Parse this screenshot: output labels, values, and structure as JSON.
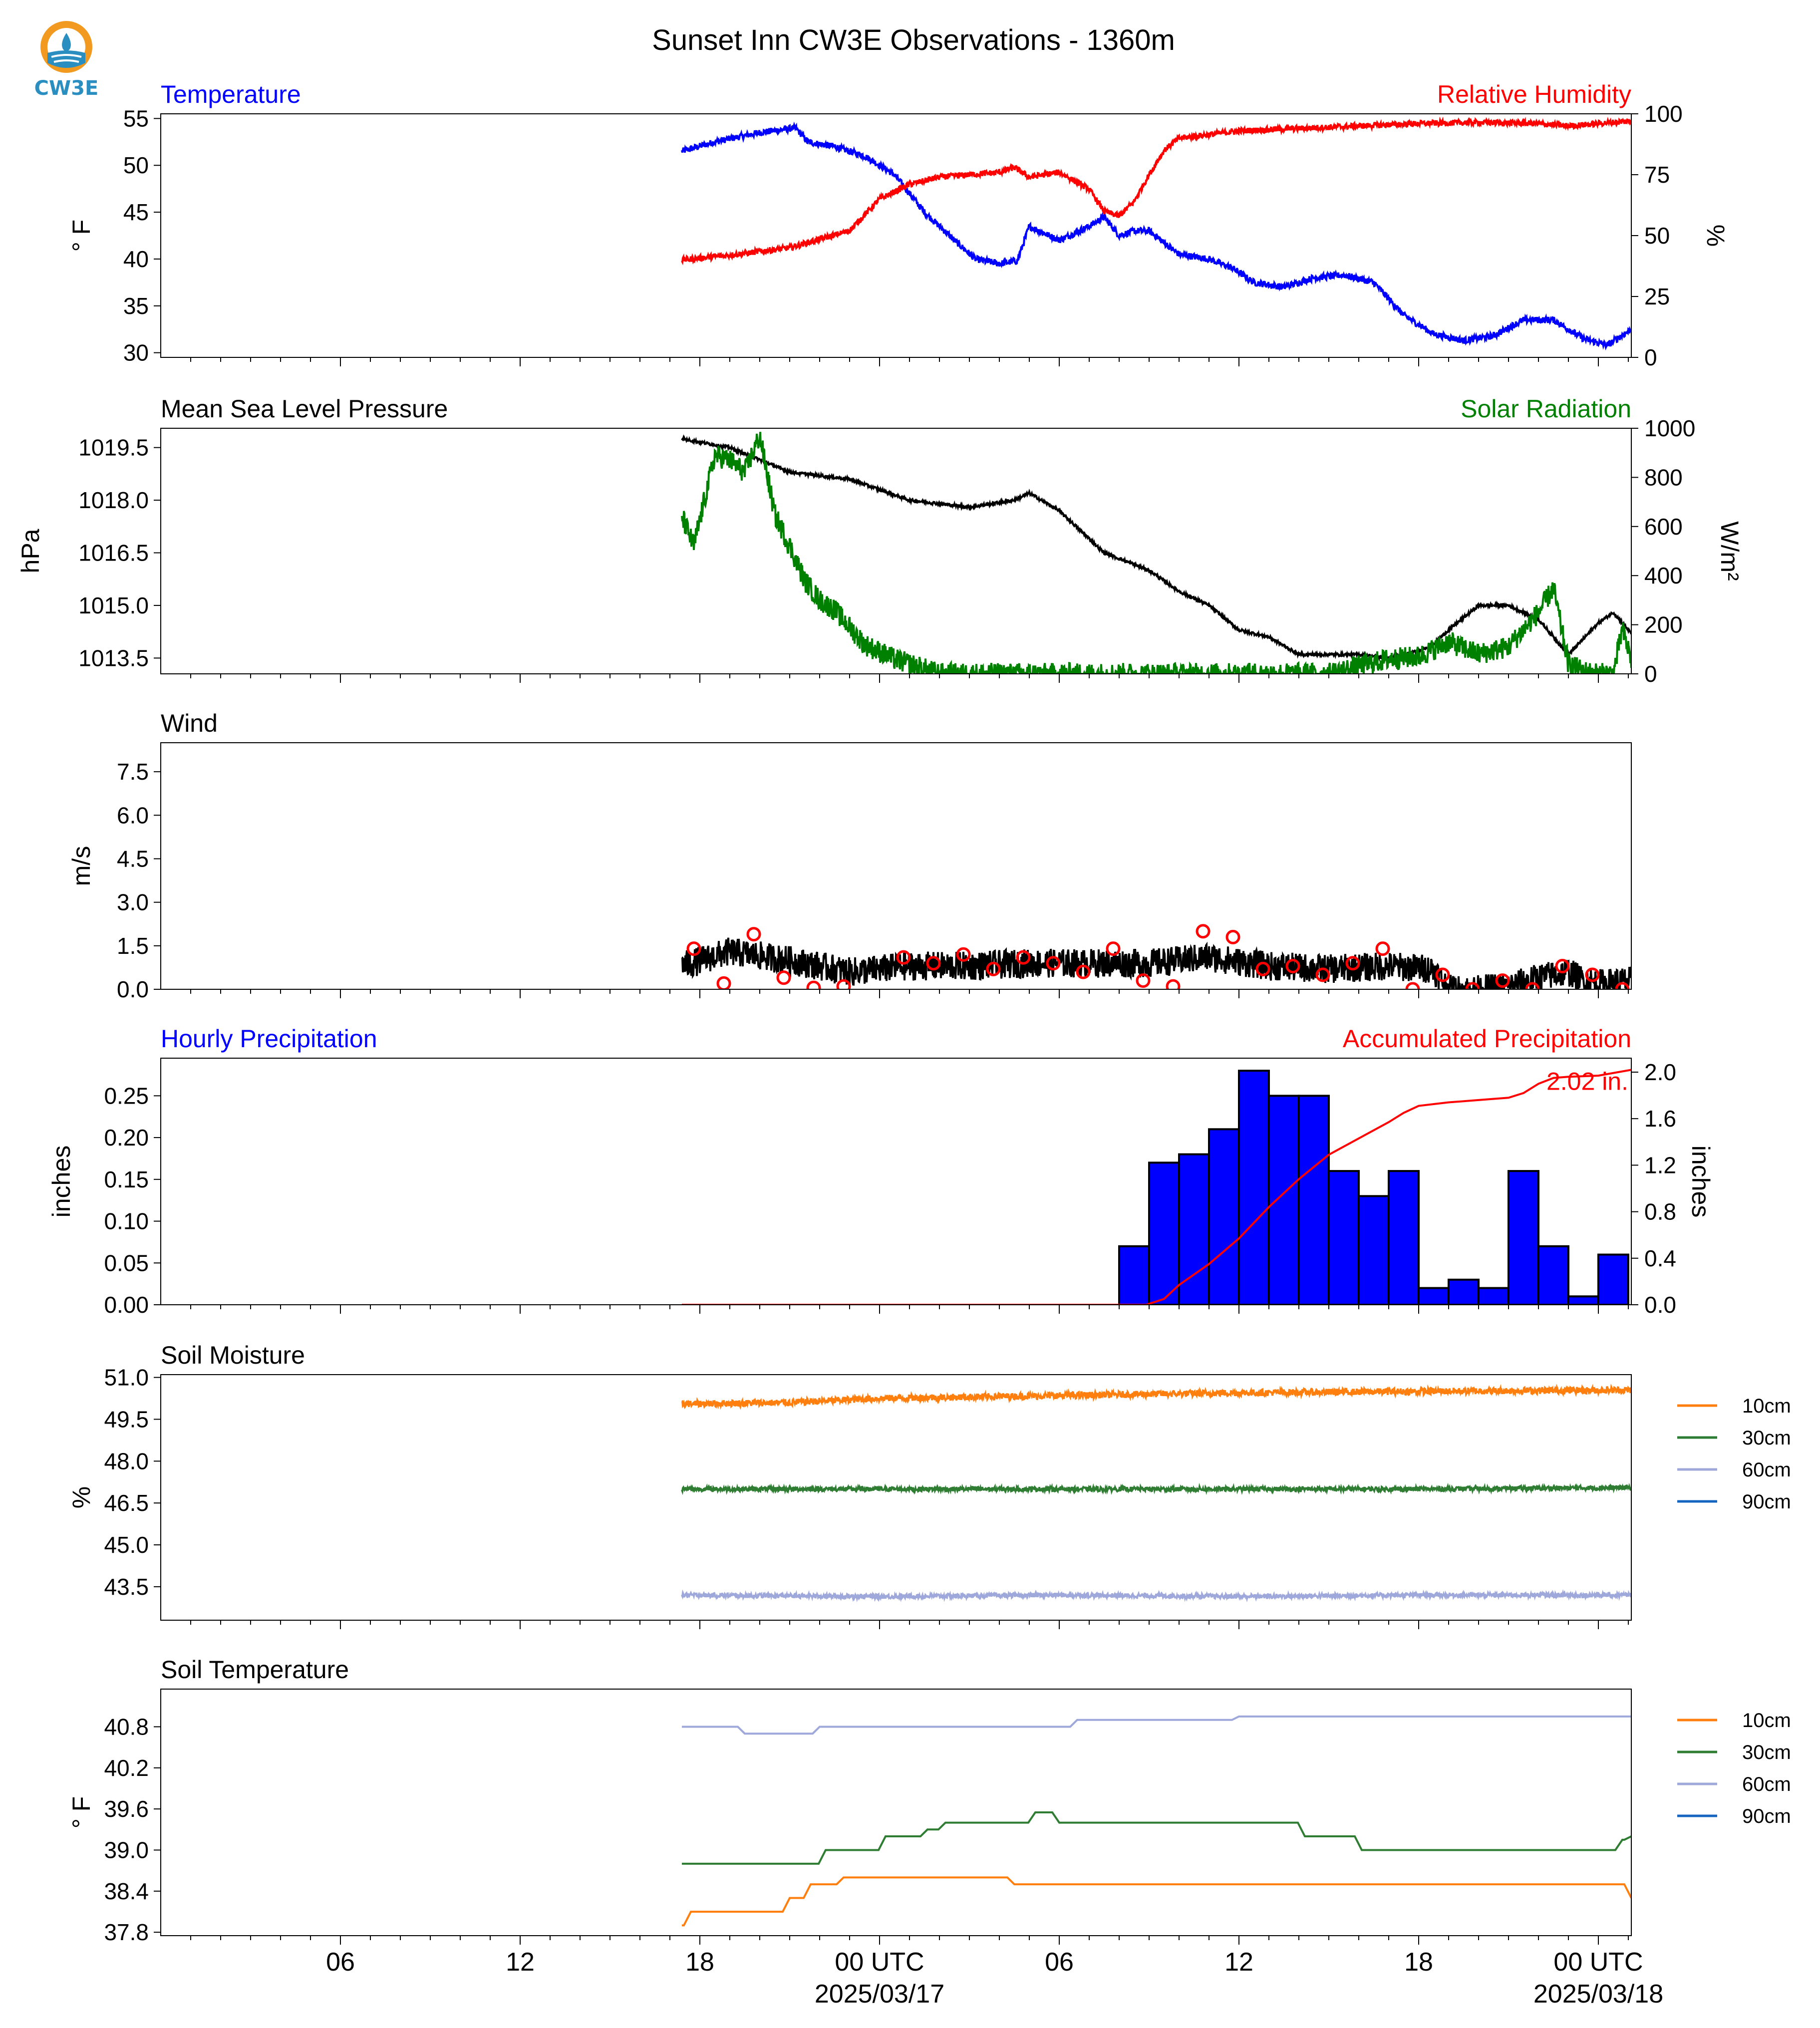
{
  "title": "Sunset Inn CW3E Observations - 1360m",
  "logo": {
    "text": "CW3E",
    "colors": {
      "ring": "#f29a1f",
      "water": "#2a8fc0"
    }
  },
  "x_axis": {
    "range_hours": [
      -24,
      25.1
    ],
    "ticks": [
      {
        "h": -18,
        "label": "06"
      },
      {
        "h": -12,
        "label": "12"
      },
      {
        "h": -6,
        "label": "18"
      },
      {
        "h": 0,
        "label": "00 UTC",
        "sublabel": "2025/03/17"
      },
      {
        "h": 6,
        "label": "06"
      },
      {
        "h": 12,
        "label": "12"
      },
      {
        "h": 18,
        "label": "18"
      },
      {
        "h": 24,
        "label": "00 UTC",
        "sublabel": "2025/03/18"
      }
    ]
  },
  "chart_data": [
    {
      "id": "temp_rh",
      "type": "line",
      "title_left": "Temperature",
      "title_left_color": "#0000ff",
      "title_right": "Relative Humidity",
      "title_right_color": "#ff0000",
      "ylabel_left": "° F",
      "ylabel_right": "%",
      "ylim_left": [
        29.5,
        55.5
      ],
      "ylim_right": [
        0,
        100
      ],
      "yticks_left": [
        30,
        35,
        40,
        45,
        50,
        55
      ],
      "yticks_right": [
        0,
        25,
        50,
        75,
        100
      ],
      "series": [
        {
          "axis": "left",
          "color": "#0000ff",
          "noise": 0.35,
          "x": [
            -6.6,
            -5.5,
            -4,
            -2.8,
            -2.4,
            -1.5,
            -0.5,
            0.5,
            1.5,
            2.5,
            3.2,
            4,
            4.6,
            5,
            6,
            7,
            7.5,
            8,
            8.5,
            9,
            10,
            11,
            11.8,
            12.5,
            13.5,
            14.5,
            15.5,
            16.5,
            17.5,
            18.5,
            19.5,
            20.5,
            21.5,
            22.5,
            23.5,
            24.3,
            25.1
          ],
          "y": [
            51.5,
            52.5,
            53.5,
            54,
            52.5,
            52,
            51,
            49,
            45,
            42,
            40,
            39.5,
            39.8,
            43.5,
            42,
            43.5,
            44.5,
            42.5,
            43,
            43,
            40.5,
            40,
            39,
            37.5,
            37,
            38,
            38.3,
            37.5,
            34,
            32,
            31.3,
            31.8,
            33.5,
            33.5,
            31.5,
            30.8,
            32.5
          ]
        },
        {
          "axis": "right",
          "color": "#ff0000",
          "noise": 1.2,
          "x": [
            -6.6,
            -5,
            -3,
            -1,
            0,
            1,
            2,
            3,
            4,
            4.5,
            5,
            6,
            7,
            7.5,
            8,
            8.5,
            9,
            9.5,
            10,
            12,
            14,
            16,
            18,
            20,
            22,
            23,
            24.5,
            25.1
          ],
          "y": [
            40,
            42,
            45,
            52,
            65,
            71,
            74,
            75,
            76,
            78,
            74,
            76,
            69,
            60,
            58,
            64,
            75,
            85,
            90,
            93,
            94,
            95,
            96,
            96.5,
            96,
            95,
            96.5,
            97
          ]
        }
      ]
    },
    {
      "id": "pressure_solar",
      "type": "line",
      "title_left": "Mean Sea Level Pressure",
      "title_left_color": "#000000",
      "title_right": "Solar Radiation",
      "title_right_color": "#008000",
      "ylabel_left": "hPa",
      "ylabel_right": "W/m²",
      "ylim_left": [
        1013.05,
        1020.05
      ],
      "ylim_right": [
        0,
        1000
      ],
      "yticks_left": [
        1013.5,
        1015.0,
        1016.5,
        1018.0,
        1019.5
      ],
      "yticks_right": [
        0,
        200,
        400,
        600,
        800,
        1000
      ],
      "right_axis_max_tick": 1000,
      "series": [
        {
          "axis": "left",
          "color": "#000000",
          "noise": 0.04,
          "x": [
            -6.6,
            -5,
            -4,
            -3,
            -1,
            1,
            2,
            3,
            4.5,
            5,
            6,
            7.5,
            9,
            10,
            11,
            12,
            13,
            14,
            15,
            16,
            17,
            18,
            18.5,
            19,
            20,
            21,
            22,
            22.5,
            23,
            24,
            24.5,
            25.1
          ],
          "y": [
            1019.75,
            1019.5,
            1019.15,
            1018.8,
            1018.6,
            1018.0,
            1017.9,
            1017.8,
            1018.0,
            1018.2,
            1017.7,
            1016.5,
            1016.0,
            1015.4,
            1015.0,
            1014.3,
            1014.1,
            1013.6,
            1013.6,
            1013.6,
            1013.5,
            1013.7,
            1013.9,
            1014.3,
            1015.0,
            1015.0,
            1014.6,
            1014.1,
            1013.6,
            1014.5,
            1014.8,
            1014.2
          ]
        },
        {
          "axis": "right",
          "color": "#008000",
          "noise": 45,
          "x": [
            -6.6,
            -6.2,
            -5.5,
            -5,
            -4.5,
            -4,
            -3.5,
            -3,
            -2.5,
            -2,
            -1.5,
            -0.5,
            0.5,
            1.5,
            2,
            3,
            5,
            10,
            12,
            13,
            14,
            15,
            16,
            17,
            18,
            19,
            20,
            21,
            22,
            22.5,
            23,
            23.5,
            24,
            24.5,
            24.8,
            25.1
          ],
          "y": [
            640,
            520,
            890,
            870,
            820,
            970,
            650,
            520,
            380,
            300,
            260,
            120,
            60,
            20,
            0,
            0,
            0,
            0,
            0,
            0,
            0,
            0,
            30,
            60,
            70,
            130,
            80,
            110,
            250,
            350,
            40,
            10,
            0,
            0,
            180,
            60
          ]
        }
      ]
    },
    {
      "id": "wind",
      "type": "line",
      "title_left": "Wind",
      "title_left_color": "#000000",
      "ylabel_left": "m/s",
      "ylim_left": [
        0,
        8.5
      ],
      "yticks_left": [
        0.0,
        1.5,
        3.0,
        4.5,
        6.0,
        7.5
      ],
      "series": [
        {
          "axis": "left",
          "color": "#000000",
          "noise": 0.5,
          "x": [
            -6.6,
            -5,
            -3,
            -1,
            1,
            3,
            5,
            7,
            9,
            11,
            13,
            15,
            17,
            18.5,
            19,
            19.5,
            20,
            21,
            22,
            23,
            23.5,
            24,
            25.1
          ],
          "y": [
            0.8,
            1.3,
            1.0,
            0.6,
            0.8,
            0.8,
            0.9,
            0.9,
            0.9,
            1.1,
            0.8,
            0.7,
            0.8,
            0.7,
            0.0,
            0.0,
            0.0,
            0.1,
            0.4,
            0.6,
            0.3,
            0.2,
            0.3
          ]
        }
      ],
      "markers": {
        "color": "#ff0000",
        "x": [
          -6.2,
          -5.2,
          -4.2,
          -3.2,
          -2.2,
          -1.2,
          0.8,
          1.8,
          2.8,
          3.8,
          4.8,
          5.8,
          6.8,
          7.8,
          8.8,
          9.8,
          10.8,
          11.8,
          12.8,
          13.8,
          14.8,
          15.8,
          16.8,
          17.8,
          18.8,
          19.8,
          20.8,
          21.8,
          22.8,
          23.8,
          24.8
        ],
        "y": [
          1.4,
          0.2,
          1.9,
          0.4,
          0.05,
          0.1,
          1.1,
          0.9,
          1.2,
          0.7,
          1.1,
          0.9,
          0.6,
          1.4,
          0.3,
          0.1,
          2.0,
          1.8,
          0.7,
          0.8,
          0.5,
          0.9,
          1.4,
          0.0,
          0.5,
          0.0,
          0.3,
          0.0,
          0.8,
          0.5,
          0.0
        ]
      }
    },
    {
      "id": "precip",
      "type": "bar",
      "title_left": "Hourly Precipitation",
      "title_left_color": "#0000ff",
      "title_right": "Accumulated Precipitation",
      "title_right_color": "#ff0000",
      "ylabel_left": "inches",
      "ylabel_right": "inches",
      "ylim_left": [
        0,
        0.295
      ],
      "ylim_right": [
        0,
        2.12
      ],
      "yticks_left": [
        0.0,
        0.05,
        0.1,
        0.15,
        0.2,
        0.25
      ],
      "yticks_right": [
        0.0,
        0.4,
        0.8,
        1.2,
        1.6,
        2.0
      ],
      "bar_color": "#0000ff",
      "bars": {
        "x": [
          8.5,
          9.5,
          10.5,
          11.5,
          12.5,
          13.5,
          14.5,
          15.5,
          16.5,
          17.5,
          18.5,
          19.5,
          20.5,
          21.5,
          22.5,
          23.5,
          24.5
        ],
        "values": [
          0.07,
          0.17,
          0.18,
          0.21,
          0.28,
          0.25,
          0.25,
          0.16,
          0.13,
          0.16,
          0.02,
          0.03,
          0.02,
          0.16,
          0.07,
          0.01,
          0.06
        ]
      },
      "accum_color": "#ff0000",
      "accum": {
        "x": [
          -6.6,
          8.9,
          9.5,
          10,
          11,
          12,
          13,
          14,
          15,
          16,
          17,
          17.5,
          18,
          19,
          20,
          21,
          21.5,
          22,
          22.5,
          23,
          24,
          25.1
        ],
        "y": [
          0,
          0,
          0.05,
          0.17,
          0.35,
          0.57,
          0.84,
          1.08,
          1.29,
          1.43,
          1.57,
          1.65,
          1.71,
          1.74,
          1.76,
          1.78,
          1.82,
          1.9,
          1.95,
          1.96,
          1.97,
          2.02
        ]
      },
      "accum_label": "2.02 in."
    },
    {
      "id": "soil_moisture",
      "type": "line",
      "title_left": "Soil Moisture",
      "title_left_color": "#000000",
      "ylabel_left": "%",
      "ylim_left": [
        42.3,
        51.1
      ],
      "yticks_left": [
        43.5,
        45.0,
        46.5,
        48.0,
        49.5,
        51.0
      ],
      "legend": [
        "10cm",
        "30cm",
        "60cm",
        "90cm"
      ],
      "legend_colors": [
        "#ff7f0e",
        "#2e7d32",
        "#9fa8da",
        "#1565c0"
      ],
      "series": [
        {
          "name": "10cm",
          "color": "#ff7f0e",
          "noise": 0.12,
          "x": [
            -6.6,
            -3,
            0,
            6,
            12,
            18,
            25.1
          ],
          "y": [
            50.05,
            50.1,
            50.25,
            50.35,
            50.45,
            50.5,
            50.55
          ]
        },
        {
          "name": "30cm",
          "color": "#2e7d32",
          "noise": 0.08,
          "x": [
            -6.6,
            0,
            6,
            12,
            18,
            25.1
          ],
          "y": [
            47.0,
            47.0,
            47.0,
            47.0,
            47.0,
            47.05
          ]
        },
        {
          "name": "60cm",
          "color": "#9fa8da",
          "noise": 0.08,
          "x": [
            -6.6,
            0,
            6,
            12,
            18,
            25.1
          ],
          "y": [
            43.2,
            43.15,
            43.2,
            43.15,
            43.2,
            43.2
          ]
        }
      ]
    },
    {
      "id": "soil_temperature",
      "type": "line",
      "title_left": "Soil Temperature",
      "title_left_color": "#000000",
      "ylabel_left": "° F",
      "ylim_left": [
        37.75,
        41.35
      ],
      "yticks_left": [
        37.8,
        38.4,
        39.0,
        39.6,
        40.2,
        40.8
      ],
      "legend": [
        "10cm",
        "30cm",
        "60cm",
        "90cm"
      ],
      "legend_colors": [
        "#ff7f0e",
        "#2e7d32",
        "#9fa8da",
        "#1565c0"
      ],
      "series": [
        {
          "name": "10cm",
          "color": "#ff7f0e",
          "step": true,
          "x": [
            -6.6,
            -6.3,
            -4.9,
            -3.0,
            -2.3,
            -1.2,
            4.5,
            24.8,
            25.1
          ],
          "y": [
            37.9,
            38.1,
            38.1,
            38.3,
            38.5,
            38.6,
            38.5,
            38.5,
            38.3
          ]
        },
        {
          "name": "30cm",
          "color": "#2e7d32",
          "step": true,
          "x": [
            -6.6,
            -1.8,
            0.2,
            1.6,
            2.2,
            5.2,
            6.0,
            6.5,
            14.2,
            16.1,
            24.5,
            24.8,
            25.1
          ],
          "y": [
            38.8,
            39.0,
            39.2,
            39.3,
            39.4,
            39.55,
            39.4,
            39.4,
            39.2,
            39.0,
            39.0,
            39.15,
            39.2
          ]
        },
        {
          "name": "60cm",
          "color": "#9fa8da",
          "step": true,
          "x": [
            -6.6,
            -4.5,
            -2.0,
            4.0,
            6.6,
            12.0,
            25.1
          ],
          "y": [
            40.8,
            40.7,
            40.8,
            40.8,
            40.9,
            40.95,
            40.95
          ]
        }
      ]
    }
  ]
}
